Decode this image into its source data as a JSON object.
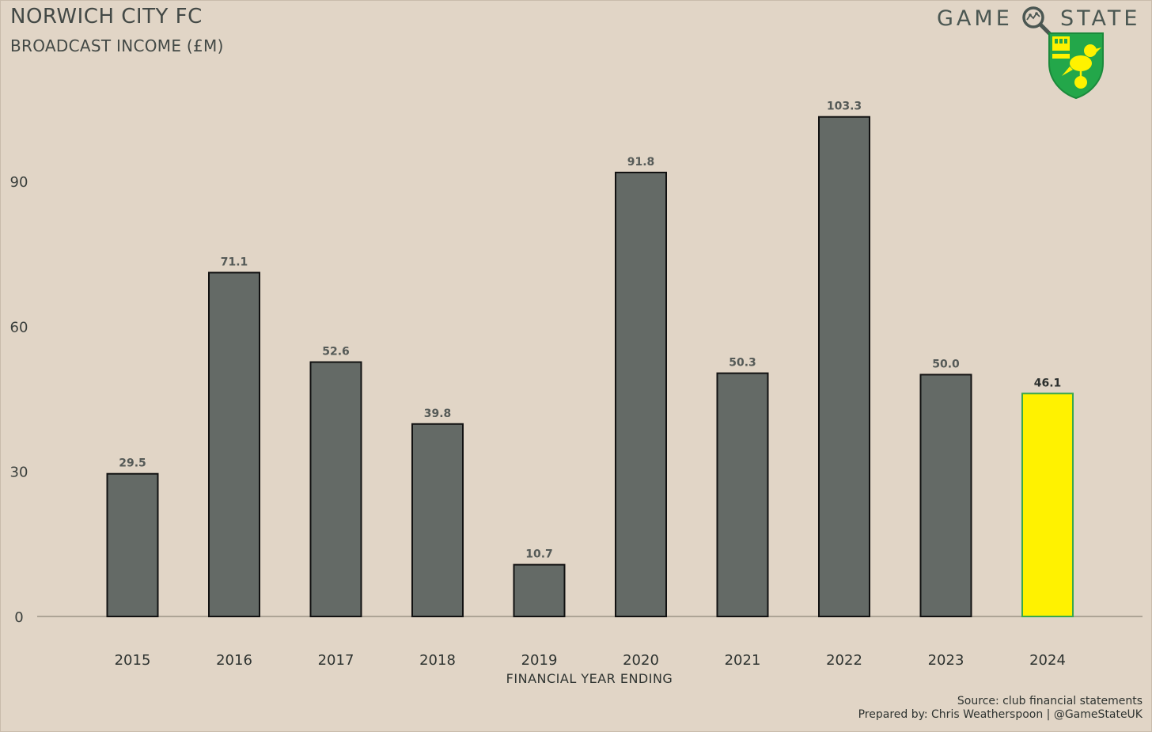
{
  "header": {
    "title": "NORWICH CITY FC",
    "subtitle": "BROADCAST INCOME (£M)"
  },
  "brand": {
    "word1": "GAME",
    "word2": "STATE",
    "icon": "magnifier-icon",
    "crest_icon": "norwich-canary-crest-icon"
  },
  "chart_data": {
    "type": "bar",
    "title": "NORWICH CITY FC",
    "subtitle": "BROADCAST INCOME (£M)",
    "xlabel": "FINANCIAL YEAR ENDING",
    "ylabel": "",
    "categories": [
      "2015",
      "2016",
      "2017",
      "2018",
      "2019",
      "2020",
      "2021",
      "2022",
      "2023",
      "2024"
    ],
    "values": [
      29.5,
      71.1,
      52.6,
      39.8,
      10.7,
      91.8,
      50.3,
      103.3,
      50.0,
      46.1
    ],
    "data_labels": [
      "29.5",
      "71.1",
      "52.6",
      "39.8",
      "10.7",
      "91.8",
      "50.3",
      "103.3",
      "50.0",
      "46.1"
    ],
    "yticks": [
      0,
      30,
      60,
      90
    ],
    "ylim": [
      0,
      110
    ],
    "grid": false,
    "highlight_index": 9,
    "colors": {
      "bar": "#646a66",
      "highlight": "#fff200",
      "highlight_edge": "#3aa84a",
      "edge": "#111111",
      "background": "#e1d5c6",
      "baseline": "#9c9486"
    }
  },
  "footer": {
    "source": "Source: club financial statements",
    "credit": "Prepared by: Chris Weatherspoon | @GameStateUK"
  }
}
